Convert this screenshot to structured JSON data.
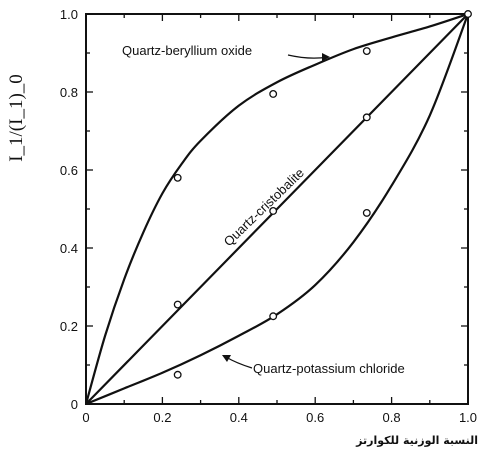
{
  "chart_data": {
    "type": "line",
    "title": "",
    "xlabel": "النسبة الوزنية للكوارتز",
    "ylabel": "I_1/(I_1)_0",
    "xlim": [
      0,
      1.0
    ],
    "ylim": [
      0,
      1.0
    ],
    "x_ticks": [
      "0",
      "0.2",
      "0.4",
      "0.6",
      "0.8",
      "1.0"
    ],
    "y_ticks": [
      "0",
      "0.2",
      "0.4",
      "0.6",
      "0.8",
      "1.0"
    ],
    "grid": false,
    "legend": "none",
    "series": [
      {
        "name": "Quartz-beryllium oxide",
        "curve": [
          [
            0,
            0
          ],
          [
            0.05,
            0.175
          ],
          [
            0.1,
            0.32
          ],
          [
            0.15,
            0.44
          ],
          [
            0.2,
            0.54
          ],
          [
            0.25,
            0.615
          ],
          [
            0.3,
            0.675
          ],
          [
            0.4,
            0.765
          ],
          [
            0.5,
            0.825
          ],
          [
            0.6,
            0.87
          ],
          [
            0.7,
            0.91
          ],
          [
            0.8,
            0.94
          ],
          [
            0.9,
            0.968
          ],
          [
            1.0,
            1.0
          ]
        ],
        "points": [
          [
            0.24,
            0.58
          ],
          [
            0.49,
            0.795
          ],
          [
            0.735,
            0.905
          ],
          [
            1.0,
            1.0
          ]
        ]
      },
      {
        "name": "Quartz-cristobalite",
        "curve": [
          [
            0,
            0
          ],
          [
            0.25,
            0.25
          ],
          [
            0.5,
            0.5
          ],
          [
            0.75,
            0.75
          ],
          [
            1.0,
            1.0
          ]
        ],
        "points": [
          [
            0.24,
            0.255
          ],
          [
            0.49,
            0.495
          ],
          [
            0.735,
            0.735
          ]
        ]
      },
      {
        "name": "Quartz-potassium chloride",
        "curve": [
          [
            0,
            0
          ],
          [
            0.1,
            0.04
          ],
          [
            0.2,
            0.08
          ],
          [
            0.3,
            0.125
          ],
          [
            0.4,
            0.175
          ],
          [
            0.5,
            0.23
          ],
          [
            0.6,
            0.305
          ],
          [
            0.7,
            0.415
          ],
          [
            0.8,
            0.56
          ],
          [
            0.9,
            0.74
          ],
          [
            1.0,
            1.0
          ]
        ],
        "points": [
          [
            0.24,
            0.075
          ],
          [
            0.49,
            0.225
          ],
          [
            0.735,
            0.49
          ]
        ]
      }
    ]
  }
}
